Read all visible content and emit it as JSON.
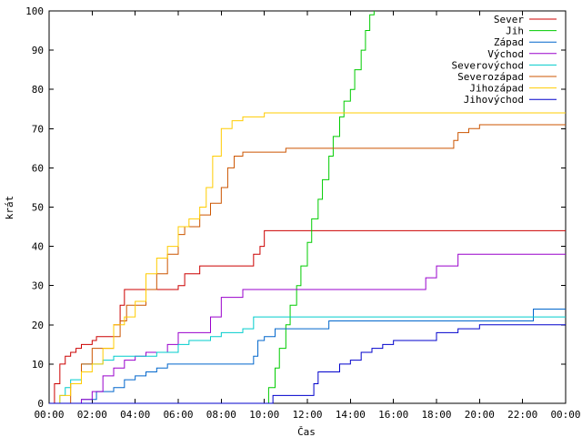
{
  "chart_data": {
    "type": "line",
    "title": "",
    "xlabel": "Čas",
    "ylabel": "krát",
    "xlim": [
      0,
      24
    ],
    "ylim": [
      0,
      100
    ],
    "x_ticks": [
      "00:00",
      "02:00",
      "04:00",
      "06:00",
      "08:00",
      "10:00",
      "12:00",
      "14:00",
      "16:00",
      "18:00",
      "20:00",
      "22:00",
      "00:00"
    ],
    "y_ticks": [
      "0",
      "10",
      "20",
      "30",
      "40",
      "50",
      "60",
      "70",
      "80",
      "90",
      "100"
    ],
    "grid": false,
    "legend_position": "top-right",
    "step": true,
    "series": [
      {
        "name": "Sever",
        "color": "#cc0000",
        "x": [
          0,
          0.25,
          0.5,
          0.75,
          1.0,
          1.25,
          1.5,
          1.75,
          2.0,
          2.2,
          2.5,
          3.0,
          3.3,
          3.5,
          4.0,
          5.0,
          6.0,
          6.3,
          6.6,
          7.0,
          8.0,
          9.0,
          9.5,
          9.8,
          10.0,
          11.0,
          14.0,
          17.0,
          20.0,
          24.0
        ],
        "y": [
          0,
          5,
          10,
          12,
          13,
          14,
          15,
          15,
          16,
          17,
          17,
          20,
          25,
          29,
          29,
          29,
          30,
          33,
          33,
          35,
          35,
          35,
          38,
          40,
          44,
          44,
          44,
          44,
          44,
          44
        ]
      },
      {
        "name": "Jih",
        "color": "#00cc00",
        "x": [
          0,
          10.0,
          10.2,
          10.5,
          10.7,
          11.0,
          11.2,
          11.5,
          11.7,
          12.0,
          12.2,
          12.5,
          12.7,
          13.0,
          13.2,
          13.5,
          13.7,
          14.0,
          14.2,
          14.5,
          14.7,
          14.9,
          15.1
        ],
        "y": [
          0,
          0,
          4,
          9,
          14,
          20,
          25,
          30,
          35,
          41,
          47,
          52,
          57,
          63,
          68,
          73,
          77,
          80,
          85,
          90,
          95,
          99,
          100
        ]
      },
      {
        "name": "Západ",
        "color": "#0066cc",
        "x": [
          0,
          1.0,
          1.5,
          2.2,
          2.5,
          3.0,
          3.5,
          4.0,
          4.5,
          5.0,
          5.5,
          6.0,
          7.0,
          8.0,
          9.0,
          9.5,
          9.7,
          10.0,
          10.5,
          11.0,
          12.0,
          13.0,
          14.0,
          18.0,
          22.0,
          22.5,
          24.0
        ],
        "y": [
          0,
          0,
          1,
          3,
          3,
          4,
          6,
          7,
          8,
          9,
          10,
          10,
          10,
          10,
          10,
          12,
          16,
          17,
          19,
          19,
          19,
          21,
          21,
          21,
          21,
          24,
          24
        ]
      },
      {
        "name": "Východ",
        "color": "#9900cc",
        "x": [
          0,
          1.5,
          2.0,
          2.5,
          3.0,
          3.5,
          4.0,
          4.5,
          5.0,
          5.5,
          6.0,
          6.5,
          7.0,
          7.5,
          8.0,
          9.0,
          10.0,
          12.0,
          15.0,
          17.0,
          17.5,
          18.0,
          18.5,
          19.0,
          20.0,
          24.0
        ],
        "y": [
          0,
          1,
          3,
          7,
          9,
          11,
          12,
          13,
          13,
          15,
          18,
          18,
          18,
          22,
          27,
          29,
          29,
          29,
          29,
          29,
          32,
          35,
          35,
          38,
          38,
          38
        ]
      },
      {
        "name": "Severovýchod",
        "color": "#00cccc",
        "x": [
          0,
          0.5,
          0.75,
          1.0,
          1.5,
          2.0,
          2.5,
          3.0,
          3.5,
          4.0,
          5.0,
          6.0,
          6.5,
          7.0,
          7.5,
          8.0,
          9.0,
          9.5,
          10.0,
          12.0,
          15.0,
          18.0,
          22.0,
          24.0
        ],
        "y": [
          0,
          2,
          4,
          6,
          10,
          10,
          11,
          12,
          12,
          12,
          13,
          15,
          16,
          16,
          17,
          18,
          19,
          22,
          22,
          22,
          22,
          22,
          22,
          22
        ]
      },
      {
        "name": "Severozápad",
        "color": "#cc5500",
        "x": [
          0,
          0.5,
          1.0,
          1.5,
          2.0,
          2.5,
          3.0,
          3.3,
          3.6,
          4.0,
          4.5,
          5.0,
          5.5,
          6.0,
          6.3,
          6.5,
          7.0,
          7.5,
          8.0,
          8.3,
          8.6,
          9.0,
          9.5,
          10.0,
          11.0,
          14.0,
          17.0,
          18.5,
          18.8,
          19.0,
          19.5,
          20.0,
          24.0
        ],
        "y": [
          0,
          0,
          5,
          10,
          14,
          14,
          17,
          21,
          25,
          25,
          29,
          33,
          38,
          43,
          45,
          45,
          48,
          51,
          55,
          60,
          63,
          64,
          64,
          64,
          65,
          65,
          65,
          65,
          67,
          69,
          70,
          71,
          71
        ]
      },
      {
        "name": "Jihozápad",
        "color": "#ffcc00",
        "x": [
          0,
          0.5,
          1.0,
          1.5,
          2.0,
          2.5,
          3.0,
          3.5,
          4.0,
          4.5,
          5.0,
          5.5,
          6.0,
          6.5,
          7.0,
          7.3,
          7.6,
          8.0,
          8.5,
          9.0,
          9.5,
          10.0,
          12.0,
          15.0,
          20.0,
          24.0
        ],
        "y": [
          0,
          2,
          5,
          8,
          10,
          14,
          20,
          22,
          26,
          33,
          37,
          40,
          45,
          47,
          50,
          55,
          63,
          70,
          72,
          73,
          73,
          74,
          74,
          74,
          74,
          74
        ]
      },
      {
        "name": "Jihovýchod",
        "color": "#0000cc",
        "x": [
          0,
          10.2,
          10.4,
          11.5,
          12.3,
          12.5,
          13.0,
          13.5,
          14.0,
          14.5,
          15.0,
          15.5,
          16.0,
          17.0,
          18.0,
          19.0,
          20.0,
          22.0,
          24.0
        ],
        "y": [
          0,
          0,
          2,
          2,
          5,
          8,
          8,
          10,
          11,
          13,
          14,
          15,
          16,
          16,
          18,
          19,
          20,
          20,
          20
        ]
      }
    ]
  }
}
